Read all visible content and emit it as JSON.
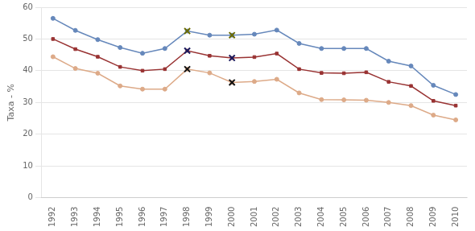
{
  "chart_data": {
    "type": "line",
    "y_label": "Taxa - %",
    "x": [
      1992,
      1993,
      1994,
      1995,
      1996,
      1997,
      1998,
      1999,
      2000,
      2001,
      2002,
      2003,
      2004,
      2005,
      2006,
      2007,
      2008,
      2009,
      2010
    ],
    "xlim": [
      1991.5,
      2010.5
    ],
    "xticks": [
      1992,
      1993,
      1994,
      1995,
      1996,
      1997,
      1998,
      1999,
      2000,
      2001,
      2002,
      2003,
      2004,
      2005,
      2006,
      2007,
      2008,
      2009,
      2010
    ],
    "ylim": [
      0,
      60
    ],
    "yticks": [
      0,
      10,
      20,
      30,
      40,
      50,
      60
    ],
    "grid": "y",
    "series": [
      {
        "color": "#6688bb",
        "marker": "circle",
        "type": "line",
        "values": [
          56.5,
          52.7,
          49.8,
          47.3,
          45.5,
          47.0,
          52.5,
          51.2,
          51.2,
          51.5,
          52.8,
          48.6,
          47.0,
          47.0,
          47.0,
          43.0,
          41.5,
          35.4,
          32.5
        ]
      },
      {
        "color": "#993333",
        "marker": "square",
        "type": "line",
        "values": [
          50.0,
          46.8,
          44.4,
          41.2,
          40.0,
          40.5,
          46.3,
          44.7,
          44.0,
          44.3,
          45.4,
          40.5,
          39.3,
          39.2,
          39.5,
          36.5,
          35.2,
          30.5,
          29.0
        ]
      },
      {
        "color": "#ddaa88",
        "marker": "circle",
        "type": "line",
        "values": [
          44.4,
          40.7,
          39.2,
          35.2,
          34.2,
          34.2,
          40.5,
          39.3,
          36.3,
          36.6,
          37.3,
          33.0,
          30.9,
          30.8,
          30.7,
          30.0,
          29.0,
          26.0,
          24.5
        ]
      },
      {
        "color": "#6b6b00",
        "marker": "cross",
        "type": "scatter",
        "x": [
          1998,
          2000
        ],
        "values": [
          52.5,
          51.2
        ]
      },
      {
        "color": "#1a1a5e",
        "marker": "cross",
        "type": "scatter",
        "x": [
          1998,
          2000
        ],
        "values": [
          46.3,
          44.0
        ]
      },
      {
        "color": "#111111",
        "marker": "cross",
        "type": "scatter",
        "x": [
          1998,
          2000
        ],
        "values": [
          40.5,
          36.3
        ]
      }
    ]
  }
}
